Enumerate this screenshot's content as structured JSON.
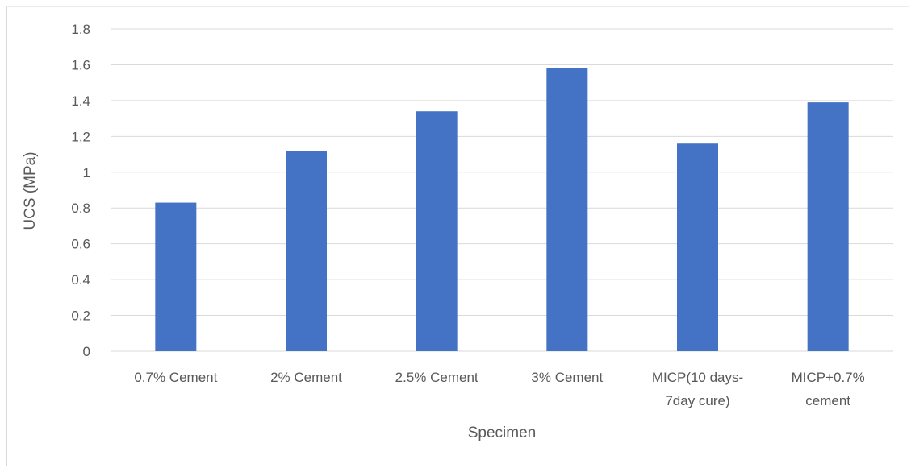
{
  "chart_data": {
    "type": "bar",
    "title": "",
    "xlabel": "Specimen",
    "ylabel": "UCS (MPa)",
    "ylim": [
      0,
      1.8
    ],
    "yticks": [
      "0",
      "0.2",
      "0.4",
      "0.6",
      "0.8",
      "1",
      "1.2",
      "1.4",
      "1.6",
      "1.8"
    ],
    "categories": [
      [
        "0.7% Cement"
      ],
      [
        "2% Cement"
      ],
      [
        "2.5% Cement"
      ],
      [
        "3% Cement"
      ],
      [
        "MICP(10 days-",
        "7day cure)"
      ],
      [
        "MICP+0.7%",
        "cement"
      ]
    ],
    "values": [
      0.83,
      1.12,
      1.34,
      1.58,
      1.16,
      1.39
    ],
    "grid": true,
    "legend": "none",
    "colors": {
      "bar": "#4472C4",
      "grid": "#d9d9d9",
      "text": "#595959"
    }
  }
}
